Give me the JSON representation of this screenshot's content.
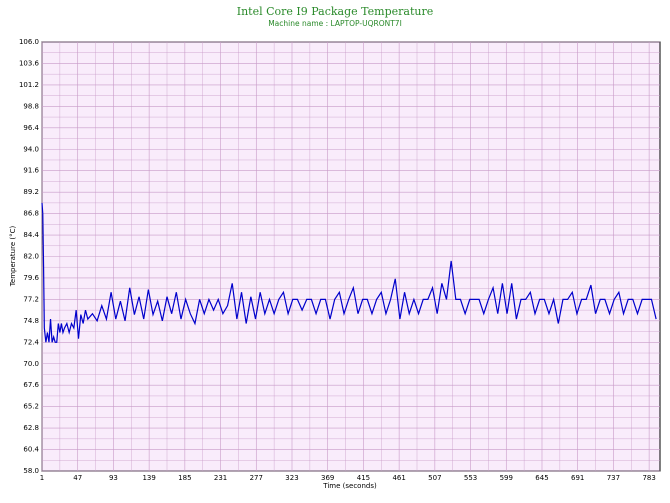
{
  "chart_data": {
    "type": "line",
    "title": "Intel Core I9 Package Temperature",
    "subtitle": "Machine name : LAPTOP-UQRONT7I",
    "y_label": "Temperature (°C)",
    "x_label": "Time (seconds)",
    "xlim": [
      1,
      797
    ],
    "ylim": [
      58,
      106
    ],
    "xticks": [
      1,
      47,
      93,
      139,
      185,
      231,
      277,
      323,
      369,
      415,
      461,
      507,
      553,
      599,
      645,
      691,
      737,
      783
    ],
    "yticks": [
      {
        "value": 58,
        "label": "58.0"
      },
      60.4,
      62.8,
      65.2,
      67.6,
      {
        "value": 70,
        "label": "70.0"
      },
      72.4,
      74.8,
      77.2,
      79.6,
      {
        "value": 82,
        "label": "82.0"
      },
      84.4,
      86.8,
      89.2,
      91.6,
      {
        "value": 94,
        "label": "94.0"
      },
      96.4,
      98.8,
      101.2,
      103.6,
      {
        "value": 106,
        "label": "106.0"
      }
    ],
    "grid": true,
    "x": [
      1,
      2,
      3,
      4,
      6,
      8,
      10,
      12,
      14,
      16,
      18,
      20,
      22,
      24,
      26,
      28,
      30,
      33,
      36,
      39,
      42,
      45,
      48,
      51,
      54,
      57,
      60,
      66,
      72,
      78,
      84,
      90,
      96,
      102,
      108,
      114,
      120,
      126,
      132,
      138,
      144,
      150,
      156,
      162,
      168,
      174,
      180,
      186,
      192,
      198,
      204,
      210,
      216,
      222,
      228,
      234,
      240,
      246,
      252,
      258,
      264,
      270,
      276,
      282,
      288,
      294,
      300,
      306,
      312,
      318,
      324,
      330,
      336,
      342,
      348,
      354,
      360,
      366,
      372,
      378,
      384,
      390,
      396,
      402,
      408,
      414,
      420,
      426,
      432,
      438,
      444,
      450,
      456,
      462,
      468,
      474,
      480,
      486,
      492,
      498,
      504,
      510,
      516,
      522,
      528,
      534,
      540,
      546,
      552,
      558,
      564,
      570,
      576,
      582,
      588,
      594,
      600,
      606,
      612,
      618,
      624,
      630,
      636,
      642,
      648,
      654,
      660,
      666,
      672,
      678,
      684,
      690,
      696,
      702,
      708,
      714,
      720,
      726,
      732,
      738,
      744,
      750,
      756,
      762,
      768,
      774,
      780,
      786,
      792
    ],
    "series": [
      {
        "name": "Temperature",
        "color": "#0000cc",
        "values": [
          88.0,
          86.8,
          81.0,
          74.0,
          72.4,
          73.5,
          72.4,
          75.0,
          72.4,
          73.0,
          72.4,
          72.4,
          74.5,
          73.5,
          74.5,
          73.5,
          74.0,
          74.5,
          73.5,
          74.5,
          74.0,
          76.0,
          72.8,
          75.5,
          74.5,
          76.0,
          75.0,
          75.6,
          74.8,
          76.5,
          75.0,
          78.0,
          75.0,
          77.0,
          74.8,
          78.5,
          75.5,
          77.5,
          75.0,
          78.3,
          75.5,
          77.0,
          74.8,
          77.5,
          75.6,
          78.0,
          75.0,
          77.2,
          75.6,
          74.5,
          77.2,
          75.6,
          77.2,
          76.0,
          77.2,
          75.6,
          76.5,
          79.0,
          75.0,
          78.0,
          74.5,
          77.5,
          75.0,
          78.0,
          75.6,
          77.2,
          75.6,
          77.2,
          78.0,
          75.6,
          77.2,
          77.2,
          76.0,
          77.2,
          77.2,
          75.6,
          77.2,
          77.2,
          75.0,
          77.2,
          78.0,
          75.6,
          77.2,
          78.5,
          75.6,
          77.2,
          77.2,
          75.6,
          77.2,
          78.0,
          75.6,
          77.2,
          79.5,
          75.0,
          78.0,
          75.6,
          77.2,
          75.6,
          77.2,
          77.2,
          78.5,
          75.6,
          79.0,
          77.2,
          81.5,
          77.2,
          77.2,
          75.6,
          77.2,
          77.2,
          77.2,
          75.6,
          77.2,
          78.5,
          75.6,
          79.0,
          75.6,
          79.0,
          75.0,
          77.2,
          77.2,
          78.0,
          75.6,
          77.2,
          77.2,
          75.6,
          77.2,
          74.5,
          77.2,
          77.2,
          78.0,
          75.6,
          77.2,
          77.2,
          78.8,
          75.6,
          77.2,
          77.2,
          75.6,
          77.2,
          78.0,
          75.6,
          77.2,
          77.2,
          75.6,
          77.2,
          77.2,
          77.2,
          75.0
        ]
      }
    ]
  }
}
